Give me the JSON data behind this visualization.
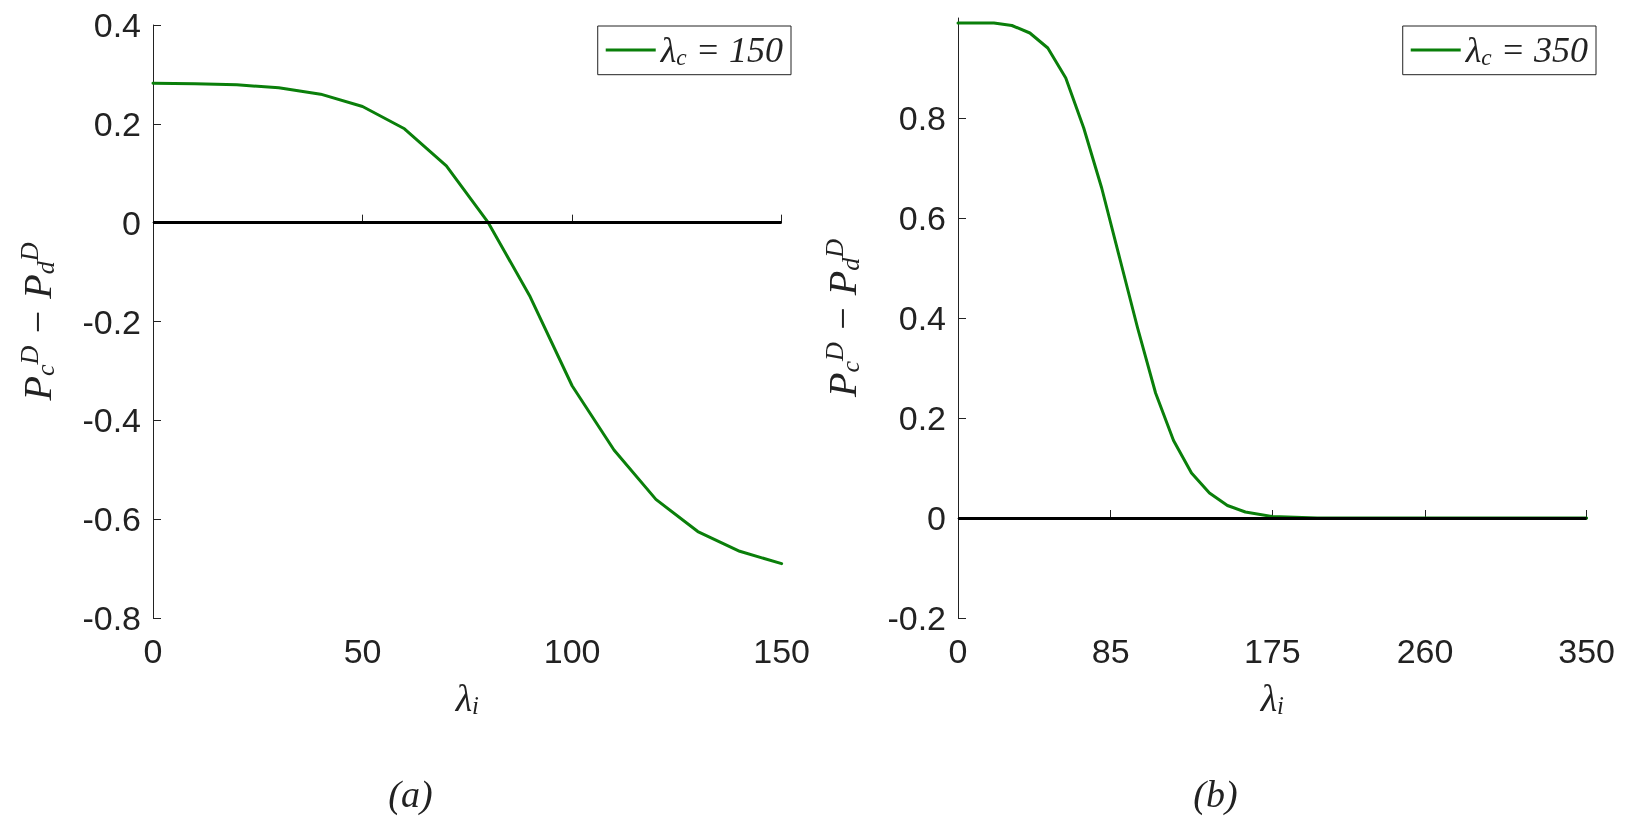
{
  "chart_data": [
    {
      "type": "line",
      "title": "(a)",
      "xlabel": "λ$_{i}$",
      "ylabel": "P$_{c}$$^{D}$ − P$_{d}$$^{D}$",
      "x": [
        0,
        10,
        20,
        30,
        40,
        50,
        60,
        70,
        80,
        90,
        100,
        110,
        120,
        130,
        140,
        150
      ],
      "series": [
        {
          "name": "λ$_{c}$ = 150",
          "color": "#0a7f0a",
          "values": [
            0.282,
            0.281,
            0.279,
            0.273,
            0.26,
            0.235,
            0.19,
            0.115,
            0.0,
            -0.15,
            -0.33,
            -0.46,
            -0.56,
            -0.625,
            -0.665,
            -0.69
          ]
        }
      ],
      "xlim": [
        0,
        150
      ],
      "xticks": [
        0,
        50,
        100,
        150
      ],
      "ylim": [
        -0.8,
        0.4
      ],
      "yticks": [
        -0.8,
        -0.6,
        -0.4,
        -0.2,
        0,
        0.2,
        0.4
      ],
      "ref_lines": [
        {
          "axis": "y",
          "value": 0,
          "color": "#000000"
        }
      ],
      "legend": "top right",
      "grid": false,
      "marker": "none",
      "line_style": "solid"
    },
    {
      "type": "line",
      "title": "(b)",
      "xlabel": "λ$_{i}$",
      "ylabel": "P$_{c}$$^{D}$ − P$_{d}$$^{D}$",
      "x": [
        0,
        20,
        30,
        40,
        50,
        60,
        70,
        80,
        90,
        100,
        110,
        120,
        130,
        140,
        150,
        160,
        175,
        200,
        260,
        350
      ],
      "series": [
        {
          "name": "λ$_{c}$ = 350",
          "color": "#0a7f0a",
          "values": [
            0.99,
            0.99,
            0.985,
            0.97,
            0.94,
            0.88,
            0.78,
            0.66,
            0.52,
            0.38,
            0.25,
            0.155,
            0.09,
            0.05,
            0.025,
            0.012,
            0.003,
            0,
            0,
            0
          ]
        }
      ],
      "xlim": [
        0,
        350
      ],
      "xticks": [
        0,
        85,
        175,
        260,
        350
      ],
      "ylim": [
        -0.2,
        1.0
      ],
      "yticks": [
        -0.2,
        0,
        0.2,
        0.4,
        0.6,
        0.8
      ],
      "ref_lines": [
        {
          "axis": "y",
          "value": 0,
          "color": "#000000"
        }
      ],
      "legend": "top right",
      "grid": false,
      "marker": "none",
      "line_style": "solid"
    }
  ]
}
